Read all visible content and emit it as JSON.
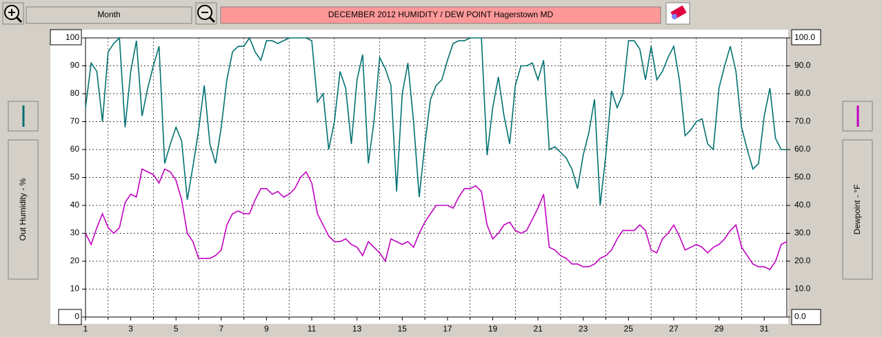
{
  "toolbar": {
    "period": "Month"
  },
  "chart_data": {
    "type": "line",
    "title": "DECEMBER  2012  HUMIDITY / DEW POINT  Hagerstown MD",
    "x": [
      1,
      1.25,
      1.5,
      1.75,
      2,
      2.25,
      2.5,
      2.75,
      3,
      3.25,
      3.5,
      3.75,
      4,
      4.25,
      4.5,
      4.75,
      5,
      5.25,
      5.5,
      5.75,
      6,
      6.25,
      6.5,
      6.75,
      7,
      7.25,
      7.5,
      7.75,
      8,
      8.25,
      8.5,
      8.75,
      9,
      9.25,
      9.5,
      9.75,
      10,
      10.25,
      10.5,
      10.75,
      11,
      11.25,
      11.5,
      11.75,
      12,
      12.25,
      12.5,
      12.75,
      13,
      13.25,
      13.5,
      13.75,
      14,
      14.25,
      14.5,
      14.75,
      15,
      15.25,
      15.5,
      15.75,
      16,
      16.25,
      16.5,
      16.75,
      17,
      17.25,
      17.5,
      17.75,
      18,
      18.25,
      18.5,
      18.75,
      19,
      19.25,
      19.5,
      19.75,
      20,
      20.25,
      20.5,
      20.75,
      21,
      21.25,
      21.5,
      21.75,
      22,
      22.25,
      22.5,
      22.75,
      23,
      23.25,
      23.5,
      23.75,
      24,
      24.25,
      24.5,
      24.75,
      25,
      25.25,
      25.5,
      25.75,
      26,
      26.25,
      26.5,
      26.75,
      27,
      27.25,
      27.5,
      27.75,
      28,
      28.25,
      28.5,
      28.75,
      29,
      29.25,
      29.5,
      29.75,
      30,
      30.25,
      30.5,
      30.75,
      31,
      31.25,
      31.5,
      31.75,
      32
    ],
    "series": [
      {
        "name": "Out Humidity - %",
        "color": "#007070",
        "axis": "y",
        "values": [
          75,
          91,
          88,
          70,
          95,
          98,
          100,
          68,
          88,
          99,
          72,
          82,
          90,
          97,
          55,
          62,
          68,
          63,
          42,
          54,
          67,
          83,
          62,
          55,
          68,
          85,
          95,
          97,
          97,
          100,
          95,
          92,
          99,
          99,
          98,
          99,
          100,
          100,
          100,
          100,
          99,
          77,
          80,
          60,
          70,
          88,
          82,
          62,
          85,
          94,
          55,
          70,
          93,
          89,
          83,
          45,
          80,
          91,
          70,
          43,
          62,
          78,
          83,
          85,
          92,
          98,
          99,
          99,
          100,
          100,
          100,
          58,
          75,
          86,
          72,
          62,
          83,
          90,
          90,
          91,
          85,
          92,
          60,
          61,
          59,
          57,
          53,
          46,
          58,
          66,
          78,
          40,
          58,
          81,
          75,
          80,
          99,
          99,
          96,
          85,
          97,
          85,
          88,
          93,
          97,
          85,
          65,
          67,
          70,
          71,
          62,
          60,
          82,
          90,
          97,
          88,
          68,
          60,
          53,
          55,
          72,
          82,
          64,
          60,
          60
        ]
      },
      {
        "name": "Dewpoint - °F",
        "color": "#c000c0",
        "axis": "y2",
        "values": [
          30,
          26,
          32,
          37,
          32,
          30,
          32,
          41,
          44,
          43,
          53,
          52,
          51,
          48,
          53,
          52,
          49,
          42,
          30,
          27,
          21,
          21,
          21,
          22,
          24,
          33,
          37,
          38,
          37,
          37,
          42,
          46,
          46,
          44,
          45,
          43,
          44,
          46,
          50,
          52,
          48,
          37,
          33,
          29,
          27,
          27,
          28,
          26,
          25,
          22,
          27,
          25,
          23,
          20,
          28,
          27,
          26,
          27,
          25,
          30,
          34,
          37,
          40,
          40,
          40,
          39,
          43,
          46,
          46,
          47,
          45,
          33,
          28,
          30,
          33,
          34,
          31,
          30,
          31,
          35,
          39,
          44,
          25,
          24,
          22,
          21,
          19,
          19,
          18,
          18,
          19,
          21,
          22,
          24,
          28,
          31,
          31,
          31,
          33,
          31,
          24,
          23,
          28,
          30,
          33,
          29,
          24,
          25,
          26,
          25,
          23,
          25,
          26,
          28,
          31,
          33,
          25,
          22,
          19,
          18,
          18,
          17,
          20,
          26,
          27
        ]
      }
    ],
    "xlim": [
      1,
      32
    ],
    "xticks": [
      1,
      3,
      5,
      7,
      9,
      11,
      13,
      15,
      17,
      19,
      21,
      23,
      25,
      27,
      29,
      31
    ],
    "xgrid_ticks": [
      2,
      4,
      6,
      8,
      10,
      12,
      14,
      16,
      18,
      20,
      22,
      24,
      26,
      28,
      30
    ],
    "ylim": [
      0,
      100
    ],
    "yticks": [
      0,
      10,
      20,
      30,
      40,
      50,
      60,
      70,
      80,
      90,
      100
    ],
    "y2lim": [
      0,
      100
    ],
    "y2ticks": [
      {
        "value": 0,
        "label": "0.0"
      },
      {
        "value": 10,
        "label": "10.0"
      },
      {
        "value": 20,
        "label": "20.0"
      },
      {
        "value": 30,
        "label": "30.0"
      },
      {
        "value": 40,
        "label": "40.0"
      },
      {
        "value": 50,
        "label": "50.0"
      },
      {
        "value": 60,
        "label": "60.0"
      },
      {
        "value": 70,
        "label": "70.0"
      },
      {
        "value": 80,
        "label": "80.0"
      },
      {
        "value": 90,
        "label": "90.0"
      },
      {
        "value": 100,
        "label": "100.0"
      }
    ],
    "grid": true
  }
}
